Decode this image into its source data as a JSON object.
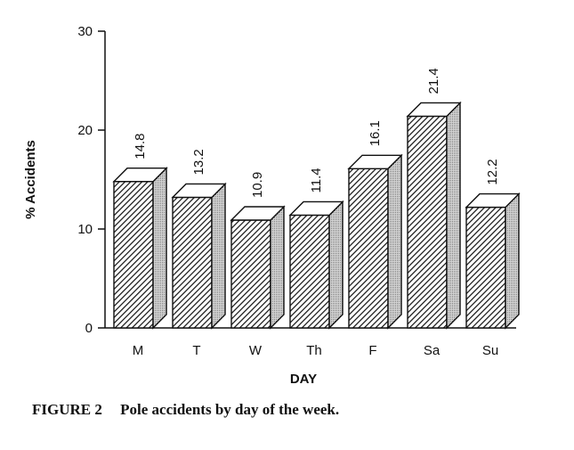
{
  "caption": {
    "number": "FIGURE 2",
    "text": "Pole accidents by day of the week."
  },
  "chart_data": {
    "type": "bar",
    "title": "",
    "xlabel": "DAY",
    "ylabel": "% Accidents",
    "categories": [
      "M",
      "T",
      "W",
      "Th",
      "F",
      "Sa",
      "Su"
    ],
    "values": [
      14.8,
      13.2,
      10.9,
      11.4,
      16.1,
      21.4,
      12.2
    ],
    "value_labels": [
      "14.8",
      "13.2",
      "10.9",
      "11.4",
      "16.1",
      "21.4",
      "12.2"
    ],
    "ylim": [
      0,
      30
    ],
    "yticks": [
      0,
      10,
      20,
      30
    ],
    "grid": false,
    "style": "3d-hatched-bars"
  }
}
